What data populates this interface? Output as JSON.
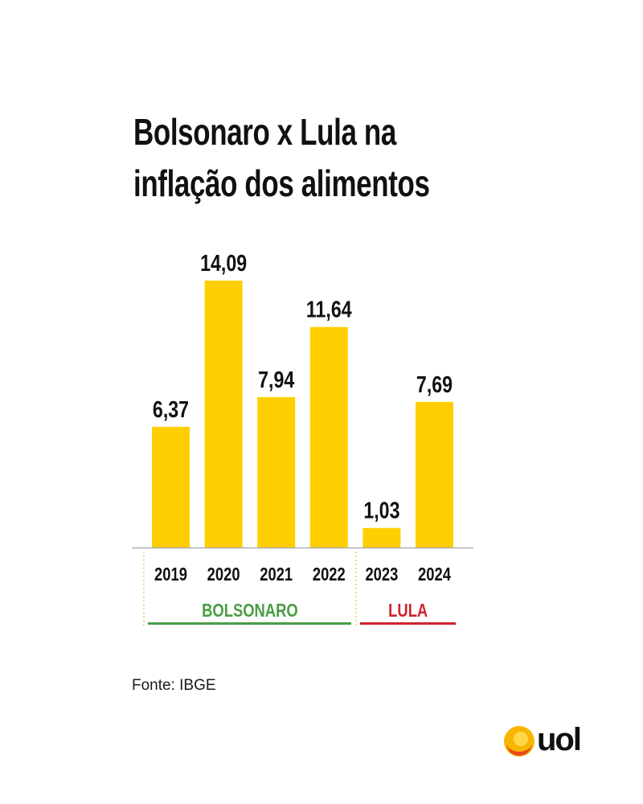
{
  "title_lines": [
    "Bolsonaro x Lula na",
    "inflação dos alimentos"
  ],
  "source": "Fonte: IBGE",
  "brand": "uol",
  "colors": {
    "bar": "#FFCE00",
    "text": "#111111",
    "axis": "#b0b0b0",
    "bolsonaro": "#4a9d44",
    "lula": "#d0232f",
    "divider": "#e3d35a"
  },
  "chart_data": {
    "type": "bar",
    "title": "Bolsonaro x Lula na inflação dos alimentos",
    "categories": [
      "2019",
      "2020",
      "2021",
      "2022",
      "2023",
      "2024"
    ],
    "values": [
      6.37,
      14.09,
      7.94,
      11.64,
      1.03,
      7.69
    ],
    "value_labels": [
      "6,37",
      "14,09",
      "7,94",
      "11,64",
      "1,03",
      "7,69"
    ],
    "ylim": [
      0,
      14.09
    ],
    "grid": false,
    "xlabel": "",
    "ylabel": "",
    "groups": [
      {
        "name": "BOLSONARO",
        "categories": [
          "2019",
          "2020",
          "2021",
          "2022"
        ]
      },
      {
        "name": "LULA",
        "categories": [
          "2023",
          "2024"
        ]
      }
    ]
  }
}
